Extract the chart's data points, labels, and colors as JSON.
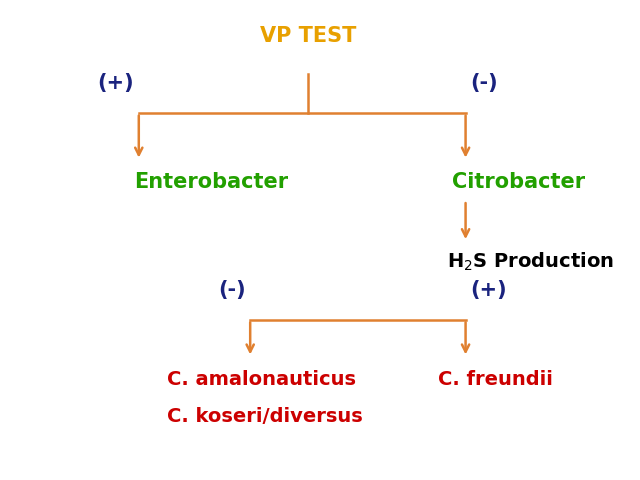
{
  "bg_color": "#ffffff",
  "title_text": "VP TEST",
  "title_color": "#E8A000",
  "title_fontsize": 15,
  "title_bold": true,
  "enterobacter_text": "Enterobacter",
  "enterobacter_color": "#22A000",
  "enterobacter_fontsize": 15,
  "enterobacter_bold": true,
  "citrobacter_text": "Citrobacter",
  "citrobacter_color": "#22A000",
  "citrobacter_fontsize": 15,
  "citrobacter_bold": true,
  "h2s_color": "#000000",
  "h2s_fontsize": 14,
  "h2s_bold": true,
  "c_amal_text": "C. amalonauticus",
  "c_amal_color": "#CC0000",
  "c_amal_fontsize": 14,
  "c_amal_bold": true,
  "c_koseri_text": "C. koseri/diversus",
  "c_koseri_color": "#CC0000",
  "c_koseri_fontsize": 14,
  "c_koseri_bold": true,
  "c_freundii_text": "C. freundii",
  "c_freundii_color": "#CC0000",
  "c_freundii_fontsize": 14,
  "c_freundii_bold": true,
  "plus_minus_color": "#1a237e",
  "plus_minus_fontsize": 15,
  "plus_minus_bold": true,
  "arrow_color": "#E08030",
  "arrow_lw": 1.8
}
